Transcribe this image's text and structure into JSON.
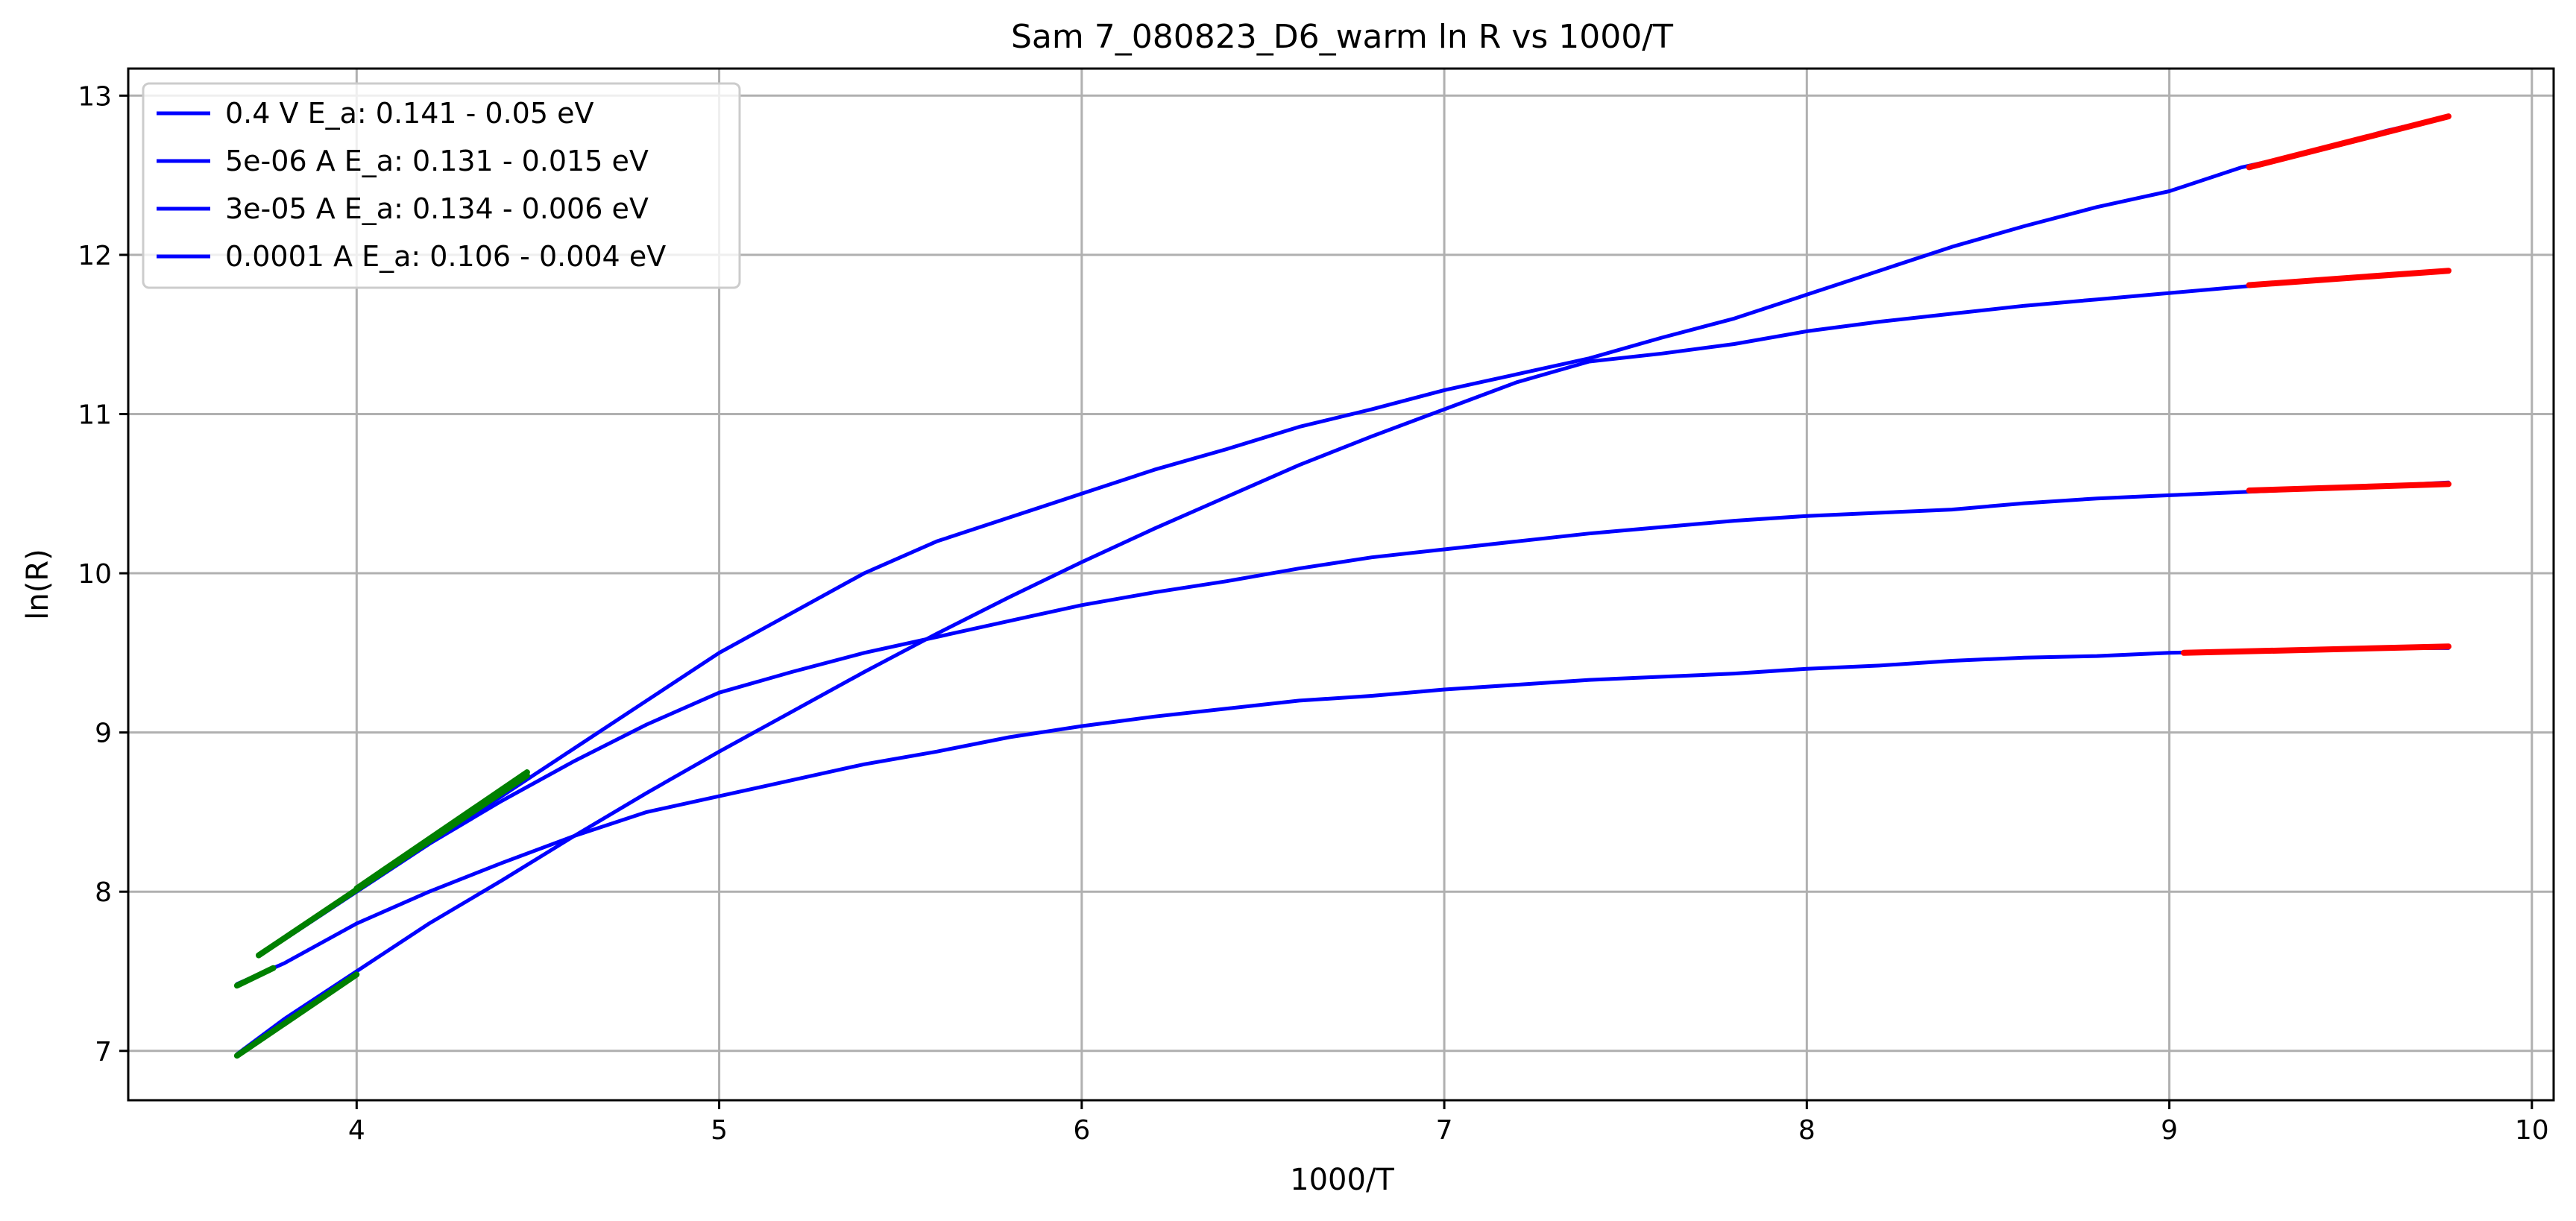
{
  "chart_data": {
    "type": "line",
    "title": "Sam 7_080823_D6_warm ln R vs 1000/T",
    "xlabel": "1000/T",
    "ylabel": "ln(R)",
    "xlim": [
      3.37,
      10.06
    ],
    "ylim": [
      6.69,
      13.17
    ],
    "xticks": [
      4,
      5,
      6,
      7,
      8,
      9,
      10
    ],
    "yticks": [
      7,
      8,
      9,
      10,
      11,
      12,
      13
    ],
    "grid": true,
    "legend_position": "upper-left",
    "colors": {
      "series": "#0000ff",
      "high_T_fit": "#008000",
      "low_T_fit": "#ff0000"
    },
    "series": [
      {
        "name": "0.4 V  E_a: 0.141 - 0.05 eV",
        "x": [
          3.8,
          4.0,
          4.2,
          4.4,
          4.6,
          4.8,
          5.0,
          5.2,
          5.4,
          5.6,
          5.8,
          6.0,
          6.2,
          6.4,
          6.6,
          6.8,
          7.0,
          7.2,
          7.4,
          7.6,
          7.8,
          8.0,
          8.2,
          8.4,
          8.6,
          8.8,
          9.0,
          9.2,
          9.4,
          9.6,
          9.77
        ],
        "y": [
          7.7,
          8.0,
          8.3,
          8.6,
          8.9,
          9.2,
          9.5,
          9.75,
          10.0,
          10.2,
          10.35,
          10.5,
          10.65,
          10.78,
          10.92,
          11.03,
          11.15,
          11.25,
          11.35,
          11.48,
          11.6,
          11.75,
          11.9,
          12.05,
          12.18,
          12.3,
          12.4,
          12.55,
          12.65,
          12.78,
          12.87
        ]
      },
      {
        "name": "5e-06 A E_a: 0.131 - 0.015 eV",
        "x": [
          3.67,
          3.8,
          4.0,
          4.2,
          4.4,
          4.6,
          4.8,
          5.0,
          5.2,
          5.4,
          5.6,
          5.8,
          6.0,
          6.2,
          6.4,
          6.6,
          6.8,
          7.0,
          7.2,
          7.4,
          7.6,
          7.8,
          8.0,
          8.2,
          8.4,
          8.6,
          8.8,
          9.0,
          9.2,
          9.4,
          9.6,
          9.77
        ],
        "y": [
          6.98,
          7.2,
          7.5,
          7.8,
          8.07,
          8.35,
          8.62,
          8.88,
          9.13,
          9.38,
          9.62,
          9.85,
          10.07,
          10.28,
          10.48,
          10.68,
          10.86,
          11.03,
          11.2,
          11.33,
          11.38,
          11.44,
          11.52,
          11.58,
          11.63,
          11.68,
          11.72,
          11.76,
          11.8,
          11.84,
          11.87,
          11.9
        ]
      },
      {
        "name": "3e-05 A E_a: 0.134 - 0.006 eV",
        "x": [
          3.67,
          3.8,
          4.0,
          4.2,
          4.4,
          4.6,
          4.8,
          5.0,
          5.2,
          5.4,
          5.6,
          5.8,
          6.0,
          6.2,
          6.4,
          6.6,
          6.8,
          7.0,
          7.2,
          7.4,
          7.6,
          7.8,
          8.0,
          8.2,
          8.4,
          8.6,
          8.8,
          9.0,
          9.2,
          9.4,
          9.6,
          9.77
        ],
        "y": [
          7.42,
          7.55,
          7.8,
          8.0,
          8.18,
          8.35,
          8.5,
          8.6,
          8.7,
          8.8,
          8.88,
          8.97,
          9.04,
          9.1,
          9.15,
          9.2,
          9.23,
          9.27,
          9.3,
          9.33,
          9.35,
          9.37,
          9.4,
          9.42,
          9.45,
          9.47,
          9.48,
          9.5,
          9.51,
          9.52,
          9.53,
          9.53
        ]
      },
      {
        "name": "0.0001 A E_a: 0.106 - 0.004 eV",
        "x": [
          3.8,
          4.0,
          4.2,
          4.4,
          4.6,
          4.8,
          5.0,
          5.2,
          5.4,
          5.6,
          5.8,
          6.0,
          6.2,
          6.4,
          6.6,
          6.8,
          7.0,
          7.2,
          7.4,
          7.6,
          7.8,
          8.0,
          8.2,
          8.4,
          8.6,
          8.8,
          9.0,
          9.2,
          9.4,
          9.6,
          9.77
        ],
        "y": [
          7.7,
          8.0,
          8.3,
          8.57,
          8.82,
          9.05,
          9.25,
          9.38,
          9.5,
          9.6,
          9.7,
          9.8,
          9.88,
          9.95,
          10.03,
          10.1,
          10.15,
          10.2,
          10.25,
          10.29,
          10.33,
          10.36,
          10.38,
          10.4,
          10.44,
          10.47,
          10.49,
          10.51,
          10.53,
          10.55,
          10.57
        ]
      }
    ],
    "high_T_fits": [
      {
        "x": [
          3.73,
          4.47
        ],
        "y": [
          7.6,
          8.73
        ]
      },
      {
        "x": [
          3.67,
          4.0
        ],
        "y": [
          6.97,
          7.48
        ]
      },
      {
        "x": [
          3.67,
          3.77
        ],
        "y": [
          7.41,
          7.52
        ]
      },
      {
        "x": [
          4.0,
          4.47
        ],
        "y": [
          8.02,
          8.75
        ]
      }
    ],
    "low_T_fits": [
      {
        "x": [
          9.22,
          9.77
        ],
        "y": [
          12.55,
          12.87
        ]
      },
      {
        "x": [
          9.22,
          9.77
        ],
        "y": [
          11.81,
          11.9
        ]
      },
      {
        "x": [
          9.04,
          9.77
        ],
        "y": [
          9.5,
          9.54
        ]
      },
      {
        "x": [
          9.22,
          9.77
        ],
        "y": [
          10.52,
          10.56
        ]
      }
    ]
  }
}
